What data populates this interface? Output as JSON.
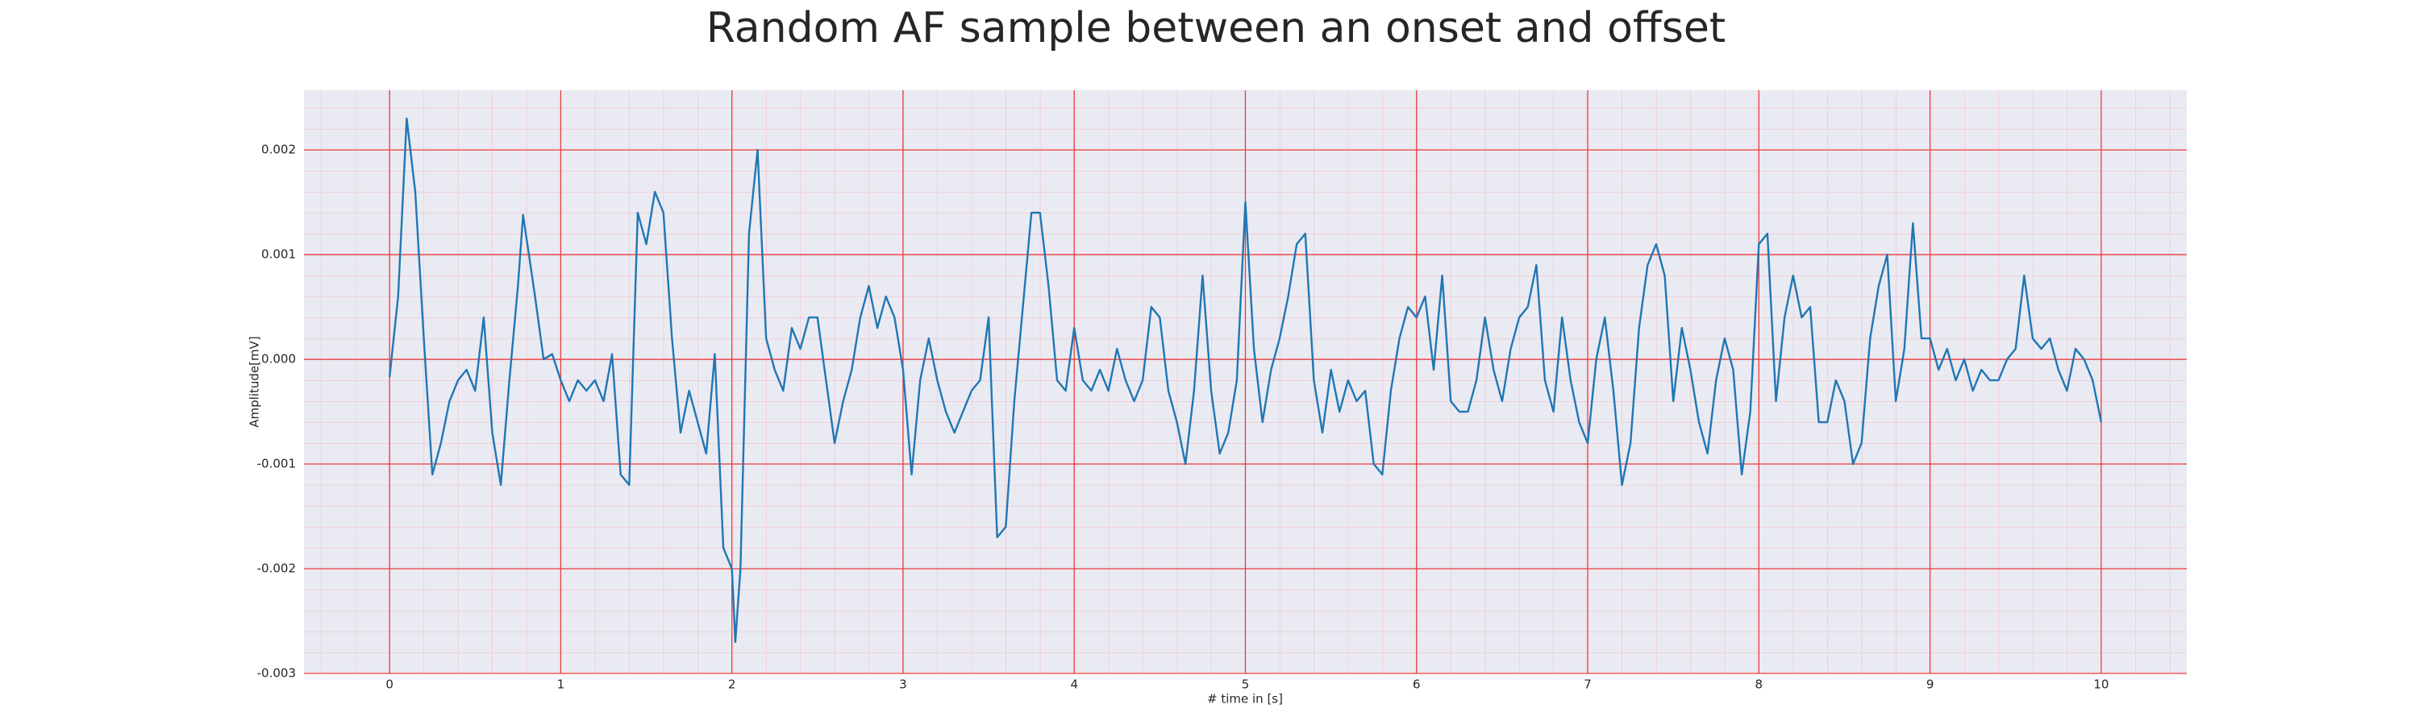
{
  "chart_data": {
    "type": "line",
    "title": "Random AF sample between an onset and offset",
    "xlabel": "# time in [s]",
    "ylabel": "Amplitude[mV]",
    "xlim": [
      -0.5,
      10.5
    ],
    "ylim": [
      -0.003,
      0.00257
    ],
    "xticks": [
      0,
      1,
      2,
      3,
      4,
      5,
      6,
      7,
      8,
      9,
      10
    ],
    "yticks": [
      -0.003,
      -0.002,
      -0.001,
      {
        "value": 0,
        "label": "0.000"
      },
      0.001,
      0.002
    ],
    "grid": true,
    "background": "#eaeaf2",
    "grid_color": "#ee3a3a",
    "minor_grid_color": "#f2b8c4",
    "x": [
      0,
      0.05,
      0.1,
      0.15,
      0.2,
      0.25,
      0.3,
      0.35,
      0.4,
      0.45,
      0.5,
      0.55,
      0.6,
      0.65,
      0.7,
      0.75,
      0.78,
      0.85,
      0.9,
      0.95,
      1.0,
      1.05,
      1.1,
      1.15,
      1.2,
      1.25,
      1.3,
      1.35,
      1.4,
      1.45,
      1.5,
      1.55,
      1.6,
      1.65,
      1.7,
      1.75,
      1.8,
      1.85,
      1.9,
      1.95,
      2.0,
      2.02,
      2.05,
      2.1,
      2.15,
      2.2,
      2.25,
      2.3,
      2.35,
      2.4,
      2.45,
      2.5,
      2.55,
      2.6,
      2.65,
      2.7,
      2.75,
      2.8,
      2.85,
      2.9,
      2.95,
      3.0,
      3.05,
      3.1,
      3.15,
      3.2,
      3.25,
      3.3,
      3.35,
      3.4,
      3.45,
      3.5,
      3.55,
      3.6,
      3.65,
      3.7,
      3.75,
      3.8,
      3.85,
      3.9,
      3.95,
      4.0,
      4.05,
      4.1,
      4.15,
      4.2,
      4.25,
      4.3,
      4.35,
      4.4,
      4.45,
      4.5,
      4.55,
      4.6,
      4.65,
      4.7,
      4.75,
      4.8,
      4.85,
      4.9,
      4.95,
      5.0,
      5.05,
      5.1,
      5.15,
      5.2,
      5.25,
      5.3,
      5.35,
      5.4,
      5.45,
      5.5,
      5.55,
      5.6,
      5.65,
      5.7,
      5.75,
      5.8,
      5.85,
      5.9,
      5.95,
      6.0,
      6.05,
      6.1,
      6.15,
      6.2,
      6.25,
      6.3,
      6.35,
      6.4,
      6.45,
      6.5,
      6.55,
      6.6,
      6.65,
      6.7,
      6.75,
      6.8,
      6.85,
      6.9,
      6.95,
      7.0,
      7.05,
      7.1,
      7.15,
      7.2,
      7.25,
      7.3,
      7.35,
      7.4,
      7.45,
      7.5,
      7.55,
      7.6,
      7.65,
      7.7,
      7.75,
      7.8,
      7.85,
      7.9,
      7.95,
      8.0,
      8.05,
      8.1,
      8.15,
      8.2,
      8.25,
      8.3,
      8.35,
      8.4,
      8.45,
      8.5,
      8.55,
      8.6,
      8.65,
      8.7,
      8.75,
      8.8,
      8.85,
      8.9,
      8.95,
      9.0,
      9.05,
      9.1,
      9.15,
      9.2,
      9.25,
      9.3,
      9.35,
      9.4,
      9.45,
      9.5,
      9.55,
      9.6,
      9.65,
      9.7,
      9.75,
      9.8,
      9.85,
      9.9,
      9.95,
      10.0
    ],
    "series": [
      {
        "color": "#1f77b4",
        "values": [
          -0.00017,
          0.0006,
          0.0023,
          0.0016,
          0.0002,
          -0.0011,
          -0.0008,
          -0.0004,
          -0.0002,
          -0.0001,
          -0.0003,
          0.0004,
          -0.0007,
          -0.0012,
          -0.0002,
          0.0007,
          0.00138,
          0.0006,
          0.0,
          5e-05,
          -0.0002,
          -0.0004,
          -0.0002,
          -0.0003,
          -0.0002,
          -0.0004,
          5e-05,
          -0.0011,
          -0.0012,
          0.0014,
          0.0011,
          0.0016,
          0.0014,
          0.0002,
          -0.0007,
          -0.0003,
          -0.0006,
          -0.0009,
          5e-05,
          -0.0018,
          -0.002,
          -0.0027,
          -0.002,
          0.0012,
          0.002,
          0.0002,
          -0.0001,
          -0.0003,
          0.0003,
          0.0001,
          0.0004,
          0.0004,
          -0.0002,
          -0.0008,
          -0.0004,
          -0.0001,
          0.0004,
          0.0007,
          0.0003,
          0.0006,
          0.0004,
          -0.0001,
          -0.0011,
          -0.0002,
          0.0002,
          -0.0002,
          -0.0005,
          -0.0007,
          -0.0005,
          -0.0003,
          -0.0002,
          0.0004,
          -0.0017,
          -0.0016,
          -0.0004,
          0.0005,
          0.0014,
          0.0014,
          0.0007,
          -0.0002,
          -0.0003,
          0.0003,
          -0.0002,
          -0.0003,
          -0.0001,
          -0.0003,
          0.0001,
          -0.0002,
          -0.0004,
          -0.0002,
          0.0005,
          0.0004,
          -0.0003,
          -0.0006,
          -0.001,
          -0.0003,
          0.0008,
          -0.0003,
          -0.0009,
          -0.0007,
          -0.0002,
          0.0015,
          0.0001,
          -0.0006,
          -0.0001,
          0.0002,
          0.0006,
          0.0011,
          0.0012,
          -0.0002,
          -0.0007,
          -0.0001,
          -0.0005,
          -0.0002,
          -0.0004,
          -0.0003,
          -0.001,
          -0.0011,
          -0.0003,
          0.0002,
          0.0005,
          0.0004,
          0.0006,
          -0.0001,
          0.0008,
          -0.0004,
          -0.0005,
          -0.0005,
          -0.0002,
          0.0004,
          -0.0001,
          -0.0004,
          0.0001,
          0.0004,
          0.0005,
          0.0009,
          -0.0002,
          -0.0005,
          0.0004,
          -0.0002,
          -0.0006,
          -0.0008,
          0.0,
          0.0004,
          -0.0003,
          -0.0012,
          -0.0008,
          0.0003,
          0.0009,
          0.0011,
          0.0008,
          -0.0004,
          0.0003,
          -0.0001,
          -0.0006,
          -0.0009,
          -0.0002,
          0.0002,
          -0.0001,
          -0.0011,
          -0.0005,
          0.0011,
          0.0012,
          -0.0004,
          0.0004,
          0.0008,
          0.0004,
          0.0005,
          -0.0006,
          -0.0006,
          -0.0002,
          -0.0004,
          -0.001,
          -0.0008,
          0.0002,
          0.0007,
          0.001,
          -0.0004,
          0.0001,
          0.0013,
          0.0002,
          0.0002,
          -0.0001,
          0.0001,
          -0.0002,
          0.0,
          -0.0003,
          -0.0001,
          -0.0002,
          -0.0002,
          0.0,
          0.0001,
          0.0008,
          0.0002,
          0.0001,
          0.0002,
          -0.0001,
          -0.0003,
          0.0001,
          0.0,
          -0.0002,
          -0.0006
        ]
      }
    ]
  }
}
